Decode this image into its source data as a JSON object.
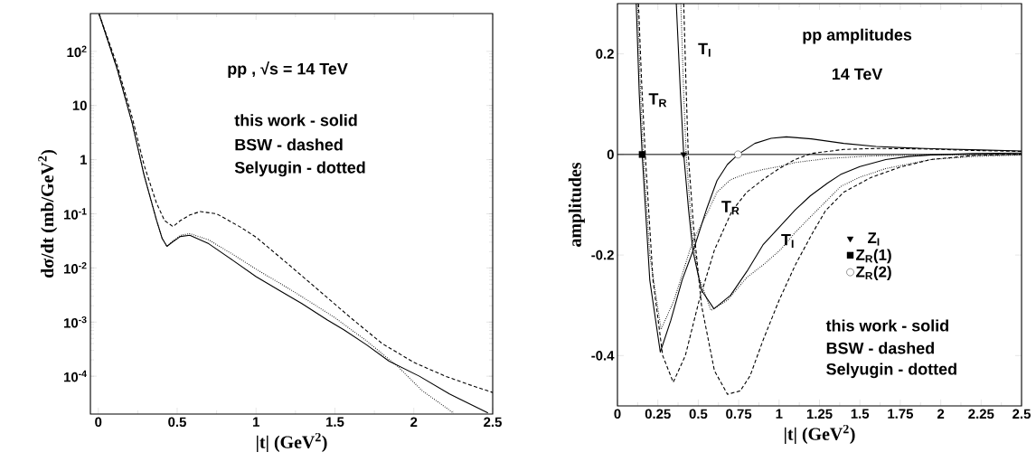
{
  "chart_data": [
    {
      "type": "line",
      "title": "pp   ,   √s = 14 TeV",
      "xlabel": "|t| (GeV$^{2}$)",
      "ylabel": "dσ/dt (mb/GeV$^{2}$)",
      "log": "y",
      "xlim": [
        -0.05,
        2.5
      ],
      "ylim": [
        2e-05,
        500
      ],
      "xticks": [
        0,
        0.5,
        1,
        1.5,
        2,
        2.5
      ],
      "yticks": [
        {
          "value": 0.0001,
          "label": "10$^{-4}$"
        },
        {
          "value": 0.001,
          "label": "10$^{-3}$"
        },
        {
          "value": 0.01,
          "label": "10$^{-2}$"
        },
        {
          "value": 0.1,
          "label": "10$^{-1}$"
        },
        1,
        10,
        {
          "value": 100,
          "label": "10$^{2}$"
        }
      ],
      "annotations": [
        "this work - solid",
        "BSW - dashed",
        "Selyugin - dotted"
      ],
      "series": [
        {
          "color": "#000000",
          "line_style": "solid",
          "x": [
            0.005,
            0.12,
            0.215,
            0.29,
            0.368,
            0.405,
            0.435,
            0.47,
            0.52,
            0.58,
            0.7,
            0.85,
            1.0,
            1.15,
            1.29,
            1.45,
            1.556,
            1.7,
            1.843,
            2.035,
            2.226,
            2.47
          ],
          "values": [
            490,
            47,
            4.7,
            0.52,
            0.078,
            0.035,
            0.025,
            0.03,
            0.038,
            0.04,
            0.028,
            0.014,
            0.0069,
            0.0038,
            0.0022,
            0.0011,
            0.00072,
            0.00038,
            0.00019,
            0.0001,
            4.7e-05,
            2.1e-05
          ]
        },
        {
          "color": "#000000",
          "line_style": "dashed",
          "x": [
            0.005,
            0.12,
            0.215,
            0.29,
            0.368,
            0.42,
            0.474,
            0.52,
            0.58,
            0.646,
            0.75,
            0.9,
            1.0,
            1.2,
            1.4,
            1.6,
            1.8,
            2.0,
            2.2,
            2.35,
            2.5
          ],
          "values": [
            490,
            55,
            6.0,
            0.8,
            0.16,
            0.075,
            0.058,
            0.075,
            0.095,
            0.11,
            0.1,
            0.057,
            0.037,
            0.012,
            0.0038,
            0.0012,
            0.0004,
            0.00018,
            0.0001,
            7e-05,
            5e-05
          ]
        },
        {
          "color": "#000000",
          "line_style": "dotted",
          "x": [
            0.005,
            0.12,
            0.215,
            0.29,
            0.368,
            0.405,
            0.435,
            0.47,
            0.52,
            0.58,
            0.7,
            0.85,
            1.0,
            1.25,
            1.5,
            1.7,
            1.9,
            2.05,
            2.25
          ],
          "values": [
            490,
            47,
            4.7,
            0.52,
            0.078,
            0.035,
            0.025,
            0.031,
            0.04,
            0.043,
            0.033,
            0.018,
            0.0095,
            0.0035,
            0.0012,
            0.00045,
            0.00015,
            5.5e-05,
            2.1e-05
          ]
        }
      ]
    },
    {
      "type": "line",
      "title": "pp   amplitudes",
      "subtitle": "14 TeV",
      "xlabel": "|t| (GeV$^{2}$)",
      "ylabel": "amplitudes",
      "xlim": [
        0,
        2.5
      ],
      "ylim": [
        -0.5,
        0.3
      ],
      "xticks": [
        0,
        0.25,
        0.5,
        0.75,
        1,
        1.25,
        1.5,
        1.75,
        2,
        2.25,
        2.5
      ],
      "yticks": [
        -0.4,
        -0.2,
        0,
        0.2
      ],
      "ref_lines": [
        {
          "axis": "y",
          "value": 0
        }
      ],
      "legend": "right",
      "annotations": [
        "this work - solid",
        "BSW - dashed",
        "Selyugin - dotted",
        "T$_{R}$",
        "T$_{I}$",
        {
          "text": "T$_{R}$",
          "x": 0.7,
          "y": -0.106
        },
        {
          "text": "T$_{I}$",
          "x": 1.054,
          "y": -0.172
        }
      ],
      "series": [
        {
          "color": "#000000",
          "line_style": "solid",
          "x": [
            0.116,
            0.135,
            0.153,
            0.2,
            0.265,
            0.33,
            0.4,
            0.476,
            0.55,
            0.616,
            0.68,
            0.746,
            0.85,
            0.95,
            1.045,
            1.2,
            1.4,
            1.6,
            1.8,
            2.0,
            2.25,
            2.5
          ],
          "values": [
            0.3,
            0.12,
            0,
            -0.25,
            -0.393,
            -0.33,
            -0.25,
            -0.184,
            -0.11,
            -0.052,
            -0.02,
            0,
            0.022,
            0.032,
            0.035,
            0.031,
            0.022,
            0.016,
            0.013,
            0.011,
            0.009,
            0.007
          ]
        },
        {
          "color": "#000000",
          "line_style": "solid",
          "x": [
            0.364,
            0.39,
            0.41,
            0.44,
            0.466,
            0.52,
            0.597,
            0.7,
            0.802,
            0.9,
            1.0,
            1.1,
            1.194,
            1.3,
            1.38,
            1.5,
            1.66,
            1.8,
            1.94,
            2.2,
            2.5
          ],
          "values": [
            0.3,
            0.12,
            0,
            -0.11,
            -0.19,
            -0.27,
            -0.307,
            -0.28,
            -0.232,
            -0.18,
            -0.145,
            -0.11,
            -0.082,
            -0.057,
            -0.04,
            -0.024,
            -0.01,
            -0.004,
            -0.001,
            0.002,
            0.003
          ]
        },
        {
          "color": "#000000",
          "line_style": "dashed",
          "x": [
            0.13,
            0.15,
            0.172,
            0.22,
            0.28,
            0.345,
            0.42,
            0.504,
            0.6,
            0.709,
            0.8,
            0.9,
            1.0,
            1.1,
            1.2,
            1.4,
            1.6,
            1.9,
            2.2,
            2.5
          ],
          "values": [
            0.3,
            0.14,
            0,
            -0.25,
            -0.4,
            -0.453,
            -0.4,
            -0.292,
            -0.19,
            -0.112,
            -0.075,
            -0.05,
            -0.028,
            -0.01,
            0.002,
            0.01,
            0.012,
            0.011,
            0.008,
            0.006
          ]
        },
        {
          "color": "#000000",
          "line_style": "dashed",
          "x": [
            0.41,
            0.425,
            0.438,
            0.47,
            0.52,
            0.6,
            0.681,
            0.76,
            0.821,
            0.9,
            1.0,
            1.1,
            1.2,
            1.287,
            1.4,
            1.567,
            1.75,
            1.94,
            2.2,
            2.5
          ],
          "values": [
            0.3,
            0.13,
            0,
            -0.14,
            -0.3,
            -0.43,
            -0.477,
            -0.47,
            -0.44,
            -0.37,
            -0.29,
            -0.22,
            -0.16,
            -0.112,
            -0.075,
            -0.046,
            -0.025,
            -0.01,
            -0.002,
            0.001
          ]
        },
        {
          "color": "#000000",
          "line_style": "dotted",
          "x": [
            0.125,
            0.142,
            0.16,
            0.2,
            0.27,
            0.35,
            0.466,
            0.55,
            0.616,
            0.7,
            0.8,
            0.9,
            1.0,
            1.1,
            1.3,
            1.567,
            1.9,
            2.5
          ],
          "values": [
            0.3,
            0.13,
            0,
            -0.2,
            -0.348,
            -0.29,
            -0.172,
            -0.12,
            -0.075,
            -0.05,
            -0.038,
            -0.03,
            -0.024,
            -0.016,
            -0.008,
            -0.003,
            -0.001,
            0.0
          ]
        },
        {
          "color": "#000000",
          "line_style": "dotted",
          "x": [
            0.392,
            0.41,
            0.425,
            0.46,
            0.5,
            0.578,
            0.68,
            0.802,
            0.9,
            1.007,
            1.1,
            1.194,
            1.3,
            1.38,
            1.5,
            1.66,
            1.94,
            2.2,
            2.5
          ],
          "values": [
            0.3,
            0.12,
            0,
            -0.15,
            -0.24,
            -0.31,
            -0.29,
            -0.244,
            -0.22,
            -0.19,
            -0.155,
            -0.124,
            -0.09,
            -0.064,
            -0.045,
            -0.028,
            -0.01,
            -0.004,
            -0.001
          ]
        },
        {
          "type": "scatter",
          "name": "Z$_{I}$",
          "marker": "triangle",
          "color": "#000000",
          "x": [
            0.41
          ],
          "values": [
            0
          ]
        },
        {
          "type": "scatter",
          "name": "Z$_{R}$(1)",
          "marker": "square",
          "color": "#000000",
          "x": [
            0.153
          ],
          "values": [
            0
          ]
        },
        {
          "type": "scatter",
          "name": "Z$_{R}$(2)",
          "marker": "circle",
          "color": "#000000",
          "x": [
            0.746
          ],
          "values": [
            0
          ]
        }
      ]
    }
  ]
}
